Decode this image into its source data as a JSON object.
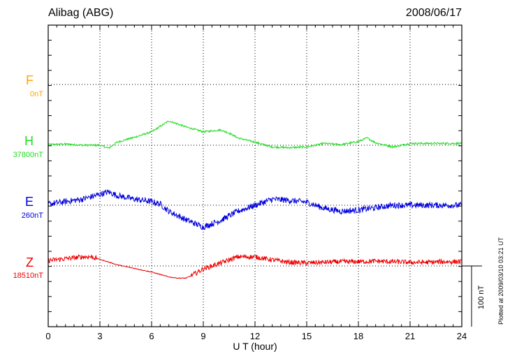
{
  "header": {
    "station": "Alibag (ABG)",
    "date": "2008/06/17"
  },
  "footer": {
    "plotted_note": "Plotted at 2009/03/10 03:21 UT"
  },
  "chart_data": {
    "type": "line",
    "xlabel": "U T (hour)",
    "xlim": [
      0,
      24
    ],
    "xticks": [
      "0",
      "3",
      "6",
      "9",
      "12",
      "15",
      "18",
      "21",
      "24"
    ],
    "grid": true,
    "scale_bar": "100 nT",
    "series": [
      {
        "name": "F",
        "baseline_label": "0nT",
        "color": "#ffa500",
        "x": [],
        "y": []
      },
      {
        "name": "H",
        "baseline_label": "37800nT",
        "color": "#22dd22",
        "x": [
          0,
          1,
          2,
          3,
          3.5,
          4,
          5,
          6,
          7,
          8,
          9,
          10,
          10.5,
          11,
          12,
          13,
          14,
          15,
          16,
          17,
          18,
          18.5,
          19,
          20,
          21,
          22,
          23,
          24
        ],
        "y": [
          1,
          2,
          0,
          0,
          -5,
          5,
          13,
          22,
          40,
          30,
          22,
          25,
          20,
          12,
          5,
          -3,
          -4,
          -3,
          3,
          1,
          6,
          12,
          4,
          -3,
          3,
          3,
          3,
          3
        ],
        "noise": 1.5
      },
      {
        "name": "E",
        "baseline_label": "260nT",
        "color": "#0000dd",
        "x": [
          0,
          1,
          2,
          3,
          3.5,
          4,
          5,
          6,
          6.5,
          7,
          8,
          9,
          10,
          11,
          12,
          13,
          14,
          15,
          16,
          17,
          18,
          19,
          20,
          21,
          22,
          23,
          24
        ],
        "y": [
          2,
          6,
          10,
          18,
          22,
          16,
          10,
          6,
          2,
          -10,
          -24,
          -36,
          -25,
          -10,
          0,
          10,
          8,
          5,
          -5,
          -10,
          -8,
          -4,
          0,
          0,
          0,
          0,
          0
        ],
        "noise": 5
      },
      {
        "name": "Z",
        "baseline_label": "18510nT",
        "color": "#ee0000",
        "x": [
          0,
          1,
          2,
          2.5,
          3,
          4,
          5,
          6,
          7,
          7.5,
          8,
          8.3,
          9,
          10,
          10.5,
          11,
          12,
          13,
          14,
          15,
          16,
          17,
          18,
          19,
          20,
          21,
          22,
          23,
          24
        ],
        "y": [
          9,
          12,
          15,
          15,
          11,
          2,
          -4,
          -10,
          -18,
          -20,
          -20,
          -16,
          -5,
          5,
          10,
          15,
          15,
          10,
          6,
          5,
          6,
          7,
          7,
          8,
          7,
          6,
          6,
          7,
          7
        ],
        "noise": 4
      }
    ]
  }
}
